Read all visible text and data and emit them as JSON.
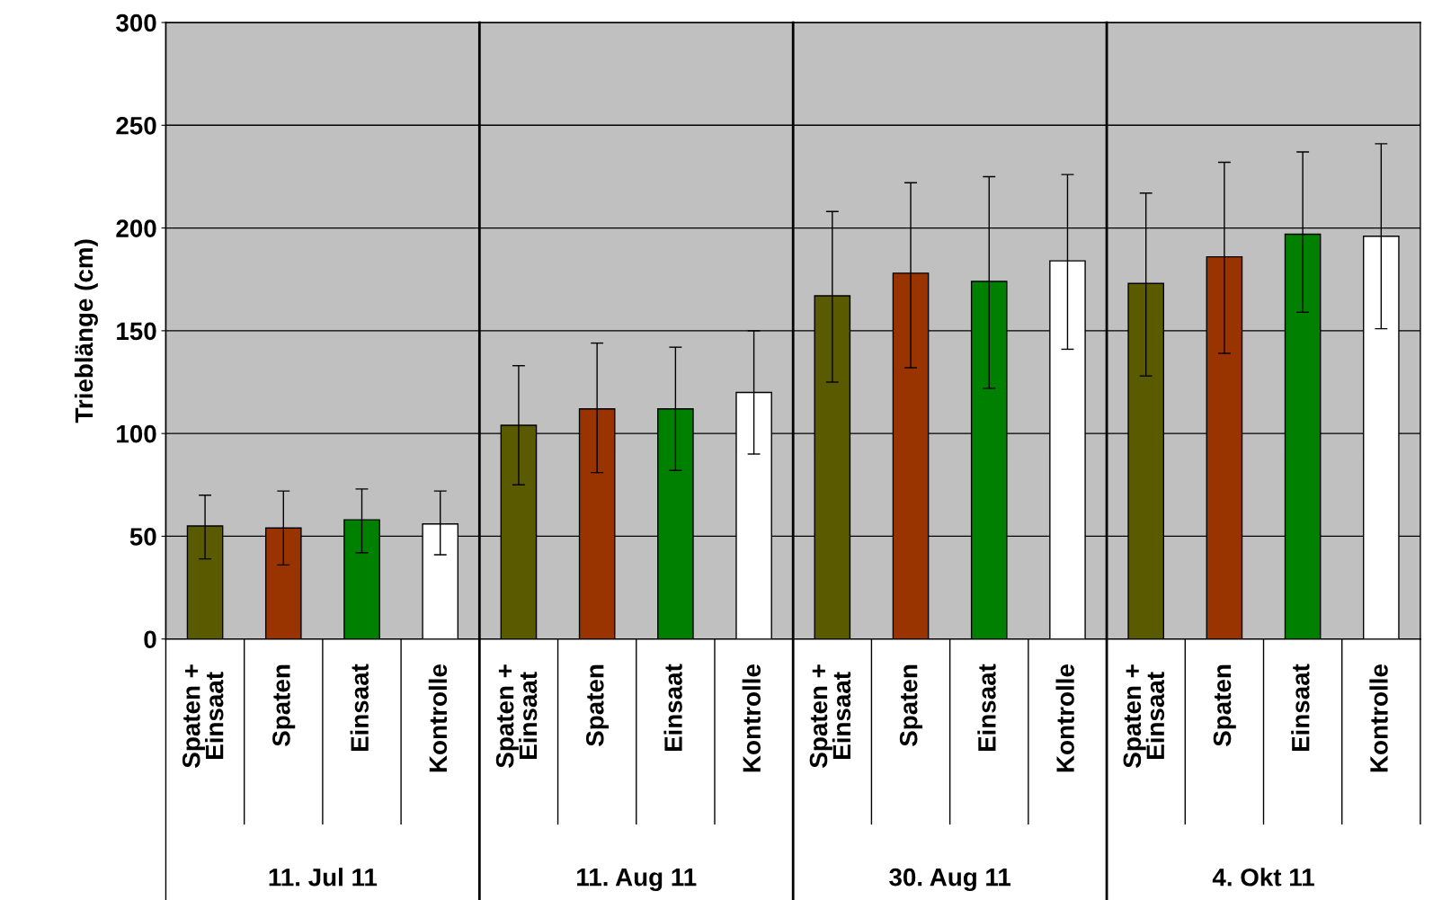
{
  "chart_data": {
    "type": "bar",
    "ylabel": "Trieblänge (cm)",
    "categories": [
      "Spaten +\nEinsaat",
      "Spaten",
      "Einsaat",
      "Kontrolle",
      "Spaten +\nEinsaat",
      "Spaten",
      "Einsaat",
      "Kontrolle",
      "Spaten +\nEinsaat",
      "Spaten",
      "Einsaat",
      "Kontrolle",
      "Spaten +\nEinsaat",
      "Spaten",
      "Einsaat",
      "Kontrolle"
    ],
    "values": [
      55,
      54,
      58,
      56,
      104,
      112,
      112,
      120,
      167,
      178,
      174,
      184,
      173,
      186,
      197,
      196
    ],
    "errors": [
      [
        39,
        70
      ],
      [
        36,
        72
      ],
      [
        42,
        73
      ],
      [
        41,
        72
      ],
      [
        75,
        133
      ],
      [
        81,
        144
      ],
      [
        82,
        142
      ],
      [
        90,
        150
      ],
      [
        125,
        208
      ],
      [
        132,
        222
      ],
      [
        122,
        225
      ],
      [
        141,
        226
      ],
      [
        128,
        217
      ],
      [
        139,
        232
      ],
      [
        159,
        237
      ],
      [
        151,
        241
      ]
    ],
    "colors": [
      "#5a5a00",
      "#993300",
      "#008000",
      "#ffffff",
      "#5a5a00",
      "#993300",
      "#008000",
      "#ffffff",
      "#5a5a00",
      "#993300",
      "#008000",
      "#ffffff",
      "#5a5a00",
      "#993300",
      "#008000",
      "#ffffff"
    ],
    "annotations": [
      "11. Jul 11",
      "11. Aug 11",
      "30. Aug 11",
      "4. Okt 11"
    ],
    "ylim": [
      0,
      300
    ],
    "yticks": [
      0,
      50,
      100,
      150,
      200,
      250,
      300
    ],
    "grid": "y"
  }
}
